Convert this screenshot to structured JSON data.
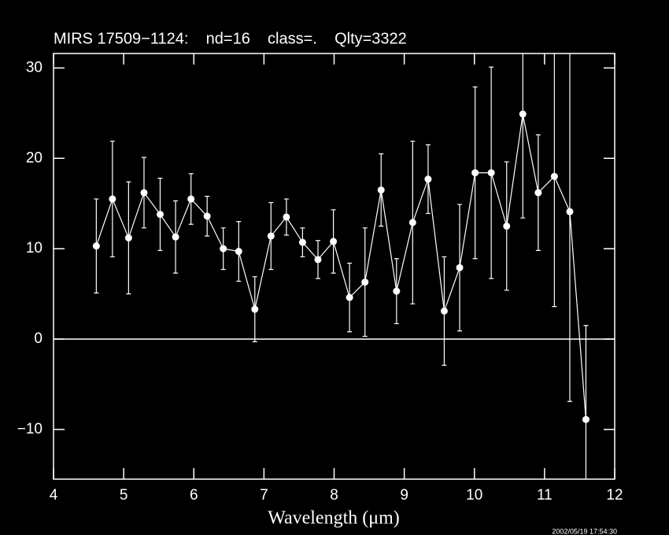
{
  "chart_data": {
    "type": "errorbar-line",
    "title": "MIRS 17509−1124:    nd=16    class=.    Qlty=3322",
    "x_label": "Wavelength (μm)",
    "timestamp": "2002/05/19 17:54:30",
    "color": "#ffffff",
    "x": [
      4.61,
      4.84,
      5.07,
      5.29,
      5.52,
      5.74,
      5.96,
      6.19,
      6.42,
      6.64,
      6.87,
      7.1,
      7.32,
      7.55,
      7.77,
      7.99,
      8.22,
      8.44,
      8.67,
      8.89,
      9.12,
      9.34,
      9.57,
      9.79,
      10.01,
      10.24,
      10.46,
      10.69,
      10.91,
      11.14,
      11.36,
      11.59
    ],
    "values": [
      10.3,
      15.5,
      11.2,
      16.2,
      13.8,
      11.3,
      15.5,
      13.6,
      10.0,
      9.7,
      3.3,
      11.4,
      13.5,
      10.7,
      8.8,
      10.8,
      4.6,
      6.3,
      16.5,
      5.3,
      12.9,
      17.7,
      3.1,
      7.9,
      18.4,
      18.4,
      12.5,
      24.9,
      16.2,
      18.0,
      14.1,
      -8.9
    ],
    "errors": [
      5.2,
      6.4,
      6.2,
      3.9,
      4.0,
      4.0,
      2.8,
      2.2,
      2.3,
      3.3,
      3.6,
      3.7,
      2.0,
      1.6,
      2.1,
      3.5,
      3.8,
      6.0,
      4.0,
      3.6,
      9.0,
      3.8,
      6.0,
      7.0,
      9.5,
      11.7,
      7.1,
      11.5,
      6.4,
      14.4,
      21.0,
      10.4
    ],
    "xlim": [
      4,
      12
    ],
    "xticks": [
      4,
      5,
      6,
      7,
      8,
      9,
      10,
      11,
      12
    ],
    "ylim": [
      -15.5,
      31.6
    ],
    "yticks": [
      {
        "value": -10,
        "label": "−10"
      },
      0,
      10,
      20,
      30
    ]
  }
}
